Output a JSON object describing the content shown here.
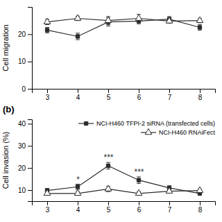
{
  "chart_data": [
    {
      "type": "line",
      "ylabel": "Cell migration",
      "x": [
        3,
        4,
        5,
        6,
        7,
        8
      ],
      "xlim": [
        2.5,
        8.5
      ],
      "xticks": [
        3,
        4,
        5,
        6,
        7,
        8
      ],
      "ylim": [
        0,
        30
      ],
      "yticks": [
        0,
        10,
        20
      ],
      "series": [
        {
          "color": "#2b2b2b",
          "marker": "square",
          "values": [
            21.5,
            19.2,
            24.5,
            24.8,
            25.5,
            22.5
          ],
          "errors": [
            1.0,
            1.2,
            1.5,
            1.0,
            1.0,
            1.0
          ]
        },
        {
          "color": "#2b2b2b",
          "marker": "triangle-open",
          "values": [
            24.5,
            25.8,
            25.0,
            25.8,
            24.8,
            25.0
          ],
          "errors": [
            1.0,
            0.8,
            1.5,
            1.5,
            0.8,
            0.8
          ]
        }
      ]
    },
    {
      "type": "line",
      "title": "(b)",
      "ylabel": "Cell invasion (%)",
      "x": [
        3,
        4,
        5,
        6,
        7,
        8
      ],
      "xlim": [
        2.5,
        8.5
      ],
      "xticks": [
        3,
        4,
        5,
        6,
        7,
        8
      ],
      "ylim": [
        5,
        42
      ],
      "yticks": [
        10,
        20,
        30,
        40
      ],
      "legend": "upper right",
      "series": [
        {
          "name": "NCI-H460 TFPI-2 siRNA (transfected cells)",
          "color": "#2b2b2b",
          "marker": "square",
          "values": [
            9.8,
            11.5,
            21.0,
            14.5,
            11.0,
            8.5
          ],
          "errors": [
            1.0,
            1.2,
            1.5,
            1.5,
            1.0,
            0.8
          ]
        },
        {
          "name": "NCI-H460 RNAiFect",
          "color": "#2b2b2b",
          "marker": "triangle-open",
          "values": [
            8.5,
            8.5,
            10.5,
            8.5,
            9.5,
            9.8
          ],
          "errors": [
            0.8,
            0.8,
            1.2,
            0.8,
            0.8,
            0.8
          ]
        }
      ],
      "annotations": [
        {
          "x": 4,
          "y": 13.5,
          "text": "*"
        },
        {
          "x": 5,
          "y": 23.5,
          "text": "***"
        },
        {
          "x": 6,
          "y": 17.0,
          "text": "***"
        }
      ]
    }
  ]
}
